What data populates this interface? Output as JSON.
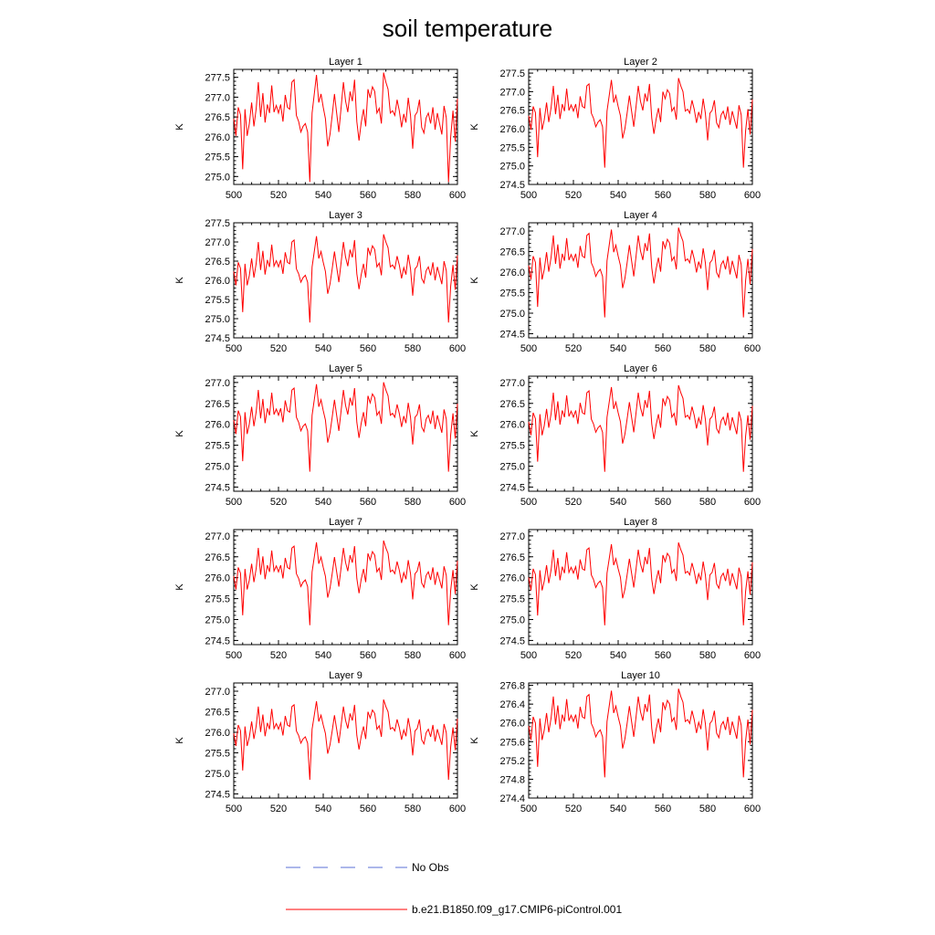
{
  "chart_data": {
    "type": "line",
    "title": "soil temperature",
    "xlabel": "",
    "ylabel": "K",
    "xlim": [
      500,
      600
    ],
    "x_ticks": [
      500,
      520,
      540,
      560,
      580,
      600
    ],
    "x_tick_labels": [
      "500",
      "520",
      "540",
      "560",
      "580",
      "600"
    ],
    "legend": [
      {
        "label": "No Obs",
        "color": "#5a6fd6",
        "style": "dashed"
      },
      {
        "label": "b.e21.B1850.f09_g17.CMIP6-piControl.001",
        "color": "#ff0000",
        "style": "solid"
      }
    ],
    "x": [
      500,
      501,
      502,
      503,
      504,
      505,
      506,
      507,
      508,
      509,
      510,
      511,
      512,
      513,
      514,
      515,
      516,
      517,
      518,
      519,
      520,
      521,
      522,
      523,
      524,
      525,
      526,
      527,
      528,
      529,
      530,
      531,
      532,
      533,
      534,
      535,
      536,
      537,
      538,
      539,
      540,
      541,
      542,
      543,
      544,
      545,
      546,
      547,
      548,
      549,
      550,
      551,
      552,
      553,
      554,
      555,
      556,
      557,
      558,
      559,
      560,
      561,
      562,
      563,
      564,
      565,
      566,
      567,
      568,
      569,
      570,
      571,
      572,
      573,
      574,
      575,
      576,
      577,
      578,
      579,
      580,
      581,
      582,
      583,
      584,
      585,
      586,
      587,
      588,
      589,
      590,
      591,
      592,
      593,
      594,
      595,
      596,
      597,
      598,
      599,
      600
    ],
    "base_pattern": [
      0.38,
      0.02,
      0.62,
      0.46,
      -0.68,
      0.58,
      0.02,
      0.28,
      0.72,
      0.22,
      0.58,
      1.15,
      0.42,
      0.92,
      0.3,
      0.68,
      0.5,
      1.08,
      0.52,
      0.66,
      0.5,
      0.68,
      0.32,
      0.88,
      0.62,
      0.58,
      1.15,
      1.2,
      0.45,
      0.32,
      0.1,
      0.22,
      0.28,
      0.1,
      -0.95,
      0.5,
      0.9,
      1.3,
      0.72,
      0.9,
      0.62,
      0.38,
      -0.2,
      0.05,
      0.45,
      0.9,
      0.5,
      0.1,
      0.62,
      1.15,
      0.75,
      0.52,
      0.95,
      0.75,
      1.2,
      0.32,
      -0.08,
      0.3,
      0.58,
      0.22,
      1.0,
      0.82,
      1.05,
      0.95,
      0.5,
      0.6,
      0.28,
      1.35,
      1.15,
      1.0,
      0.5,
      0.55,
      0.45,
      0.78,
      0.55,
      0.2,
      0.48,
      0.3,
      0.82,
      0.45,
      -0.25,
      0.45,
      0.52,
      0.78,
      0.2,
      0.08,
      0.4,
      0.5,
      0.28,
      0.62,
      0.15,
      0.5,
      0.28,
      0.05,
      0.65,
      0.4,
      -0.95,
      0.0,
      0.55,
      -0.1,
      0.8
    ],
    "panels": [
      {
        "title": "Layer 1",
        "ylim": [
          274.8,
          277.7
        ],
        "yticks": [
          275.0,
          275.5,
          276.0,
          276.5,
          277.0,
          277.5
        ],
        "ytick_labels": [
          "275.0",
          "275.5",
          "276.0",
          "276.5",
          "277.0",
          "277.5"
        ],
        "offset": 276.0,
        "scale": 1.2
      },
      {
        "title": "Layer 2",
        "ylim": [
          274.5,
          277.6
        ],
        "yticks": [
          274.5,
          275.0,
          275.5,
          276.0,
          276.5,
          277.0,
          277.5
        ],
        "ytick_labels": [
          "274.5",
          "275.0",
          "275.5",
          "276.0",
          "276.5",
          "277.0",
          "277.5"
        ],
        "offset": 275.95,
        "scale": 1.05
      },
      {
        "title": "Layer 3",
        "ylim": [
          274.5,
          277.5
        ],
        "yticks": [
          274.5,
          275.0,
          275.5,
          276.0,
          276.5,
          277.0,
          277.5
        ],
        "ytick_labels": [
          "274.5",
          "275.0",
          "275.5",
          "276.0",
          "276.5",
          "277.0",
          "277.5"
        ],
        "offset": 275.85,
        "scale": 1.0
      },
      {
        "title": "Layer 4",
        "ylim": [
          274.4,
          277.2
        ],
        "yticks": [
          274.5,
          275.0,
          275.5,
          276.0,
          276.5,
          277.0
        ],
        "ytick_labels": [
          "274.5",
          "275.0",
          "275.5",
          "276.0",
          "276.5",
          "277.0"
        ],
        "offset": 275.8,
        "scale": 0.95
      },
      {
        "title": "Layer 5",
        "ylim": [
          274.4,
          277.15
        ],
        "yticks": [
          274.5,
          275.0,
          275.5,
          276.0,
          276.5,
          277.0
        ],
        "ytick_labels": [
          "274.5",
          "275.0",
          "275.5",
          "276.0",
          "276.5",
          "277.0"
        ],
        "offset": 275.75,
        "scale": 0.93
      },
      {
        "title": "Layer 6",
        "ylim": [
          274.4,
          277.15
        ],
        "yticks": [
          274.5,
          275.0,
          275.5,
          276.0,
          276.5,
          277.0
        ],
        "ytick_labels": [
          "274.5",
          "275.0",
          "275.5",
          "276.0",
          "276.5",
          "277.0"
        ],
        "offset": 275.72,
        "scale": 0.9
      },
      {
        "title": "Layer 7",
        "ylim": [
          274.4,
          277.15
        ],
        "yticks": [
          274.5,
          275.0,
          275.5,
          276.0,
          276.5,
          277.0
        ],
        "ytick_labels": [
          "274.5",
          "275.0",
          "275.5",
          "276.0",
          "276.5",
          "277.0"
        ],
        "offset": 275.7,
        "scale": 0.88
      },
      {
        "title": "Layer 8",
        "ylim": [
          274.4,
          277.15
        ],
        "yticks": [
          274.5,
          275.0,
          275.5,
          276.0,
          276.5,
          277.0
        ],
        "ytick_labels": [
          "274.5",
          "275.0",
          "275.5",
          "276.0",
          "276.5",
          "277.0"
        ],
        "offset": 275.68,
        "scale": 0.86
      },
      {
        "title": "Layer 9",
        "ylim": [
          274.4,
          277.2
        ],
        "yticks": [
          274.5,
          275.0,
          275.5,
          276.0,
          276.5,
          277.0
        ],
        "ytick_labels": [
          "274.5",
          "275.0",
          "275.5",
          "276.0",
          "276.5",
          "277.0"
        ],
        "offset": 275.65,
        "scale": 0.85
      },
      {
        "title": "Layer 10",
        "ylim": [
          274.4,
          276.85
        ],
        "yticks": [
          274.4,
          274.8,
          275.2,
          275.6,
          276.0,
          276.4,
          276.8
        ],
        "ytick_labels": [
          "274.4",
          "274.8",
          "275.2",
          "275.6",
          "276.0",
          "276.4",
          "276.8"
        ],
        "offset": 275.62,
        "scale": 0.82
      }
    ]
  }
}
